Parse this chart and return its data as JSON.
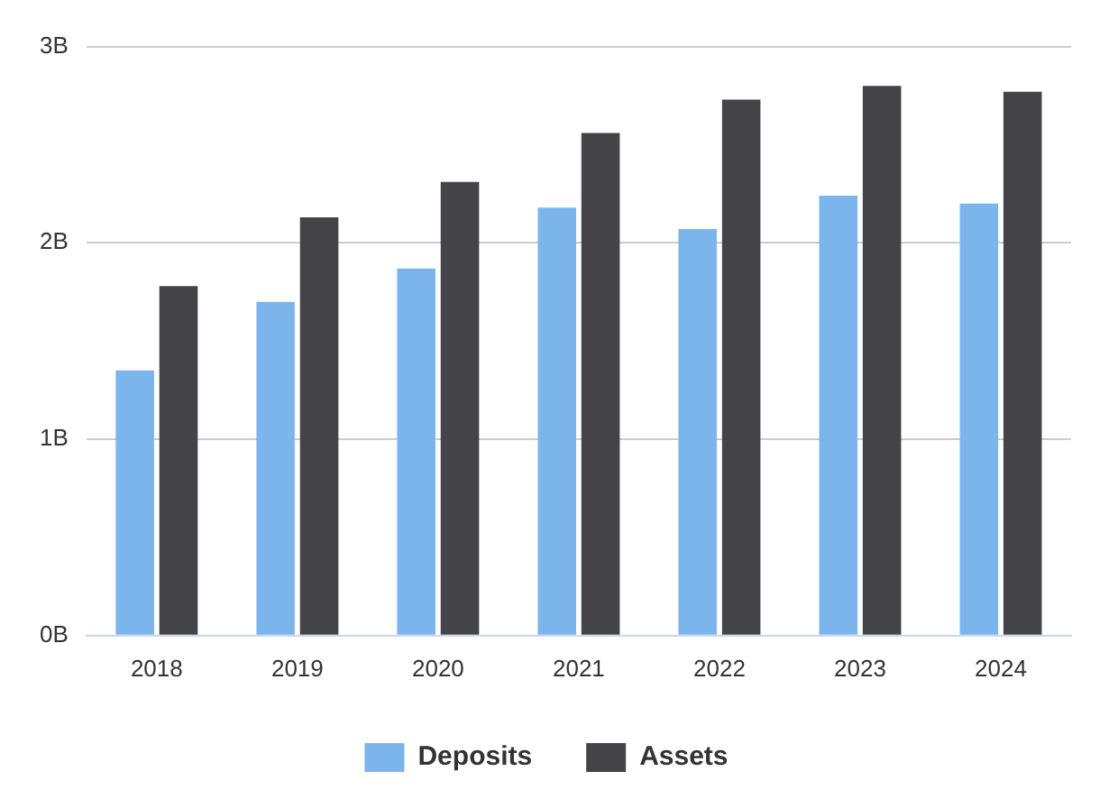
{
  "chart_data": {
    "type": "bar",
    "categories": [
      "2018",
      "2019",
      "2020",
      "2021",
      "2022",
      "2023",
      "2024"
    ],
    "series": [
      {
        "name": "Deposits",
        "color": "#7cb5ec",
        "values": [
          1.35,
          1.7,
          1.87,
          2.18,
          2.07,
          2.24,
          2.2
        ]
      },
      {
        "name": "Assets",
        "color": "#434348",
        "values": [
          1.78,
          2.13,
          2.31,
          2.56,
          2.73,
          2.8,
          2.77
        ]
      }
    ],
    "ylim": [
      0,
      3
    ],
    "yticks": [
      {
        "value": 0,
        "label": "0B"
      },
      {
        "value": 1,
        "label": "1B"
      },
      {
        "value": 2,
        "label": "2B"
      },
      {
        "value": 3,
        "label": "3B"
      }
    ],
    "grid": "y",
    "legend": "bottom"
  }
}
